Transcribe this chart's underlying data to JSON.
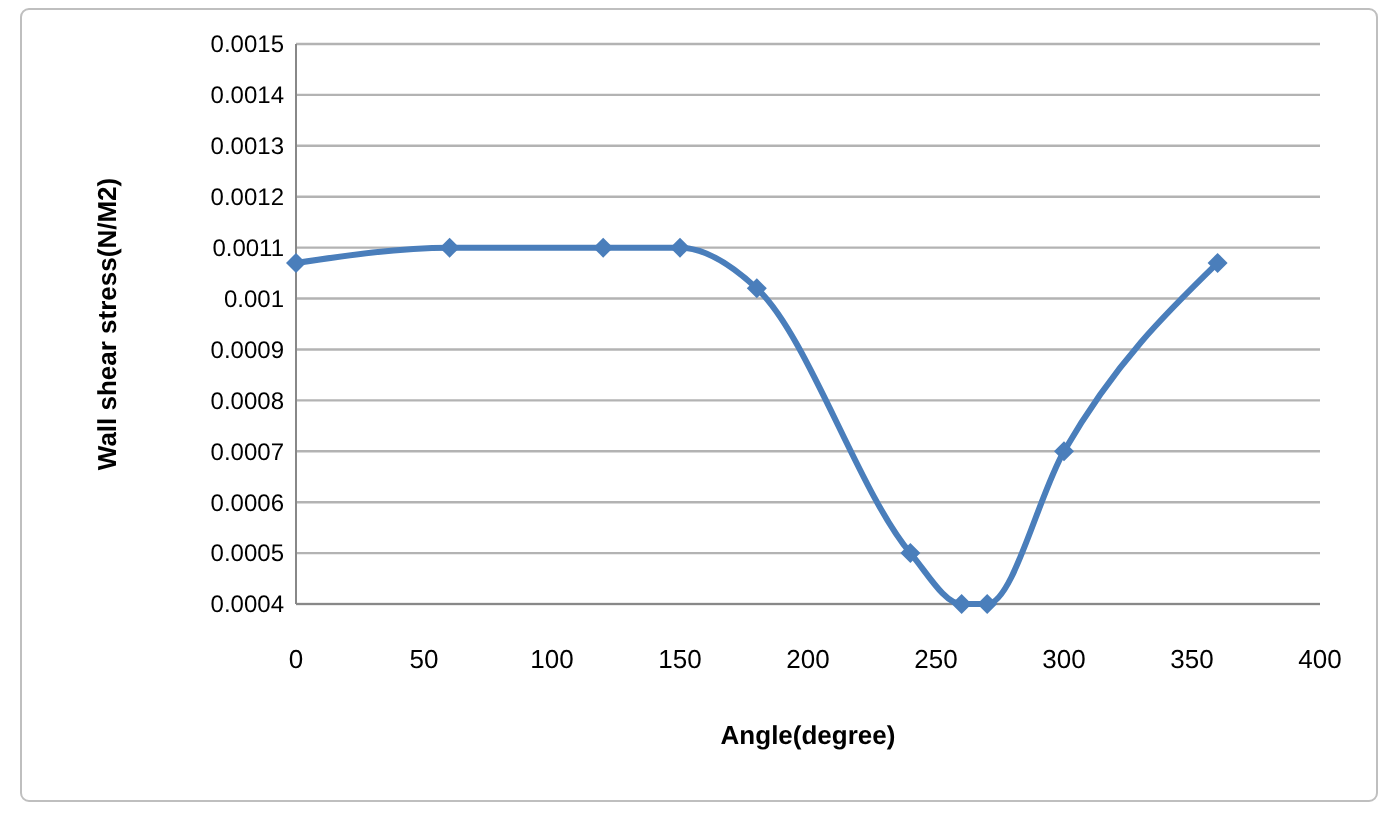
{
  "chart_data": {
    "type": "line",
    "xlabel": "Angle(degree)",
    "ylabel": "Wall shear stress(N/M2)",
    "x": [
      0,
      60,
      120,
      150,
      180,
      240,
      260,
      270,
      300,
      360
    ],
    "series": [
      {
        "color": "#4a7ebb",
        "values": [
          0.00107,
          0.0011,
          0.0011,
          0.0011,
          0.00102,
          0.0005,
          0.0004,
          0.0004,
          0.0007,
          0.00107
        ]
      }
    ],
    "xlim": [
      0,
      400
    ],
    "xticks": [
      0,
      50,
      100,
      150,
      200,
      250,
      300,
      350,
      400
    ],
    "ylim": [
      0.0004,
      0.0015
    ],
    "yticks": [
      0.0004,
      0.0005,
      0.0006,
      0.0007,
      0.0008,
      0.0009,
      0.001,
      0.0011,
      0.0012,
      0.0013,
      0.0014,
      0.0015
    ],
    "grid": "y",
    "marker": "diamond",
    "line_style": "solid"
  }
}
